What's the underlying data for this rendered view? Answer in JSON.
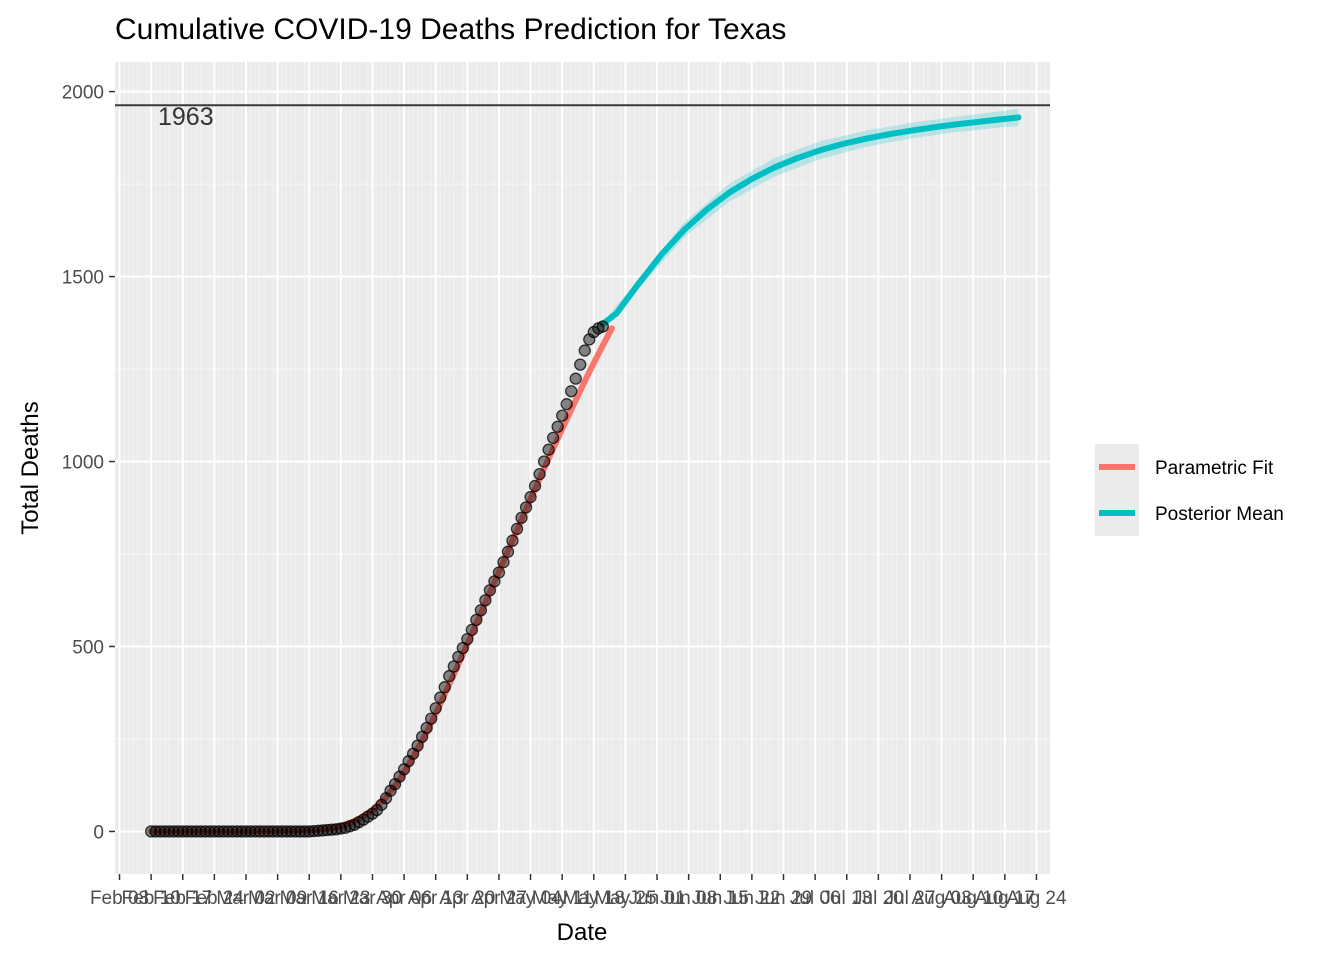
{
  "chart_data": {
    "type": "line",
    "title": "Cumulative COVID-19 Deaths Prediction for Texas",
    "xlabel": "Date",
    "ylabel": "Total Deaths",
    "x_range_days": [
      -6,
      201
    ],
    "ylim": [
      -115,
      2080
    ],
    "y_ticks": [
      0,
      500,
      1000,
      1500,
      2000
    ],
    "x_tick_labels": [
      "Feb 03",
      "Feb 10",
      "Feb 17",
      "Feb 24",
      "Mar 02",
      "Mar 09",
      "Mar 16",
      "Mar 23",
      "Mar 30",
      "Apr 06",
      "Apr 13",
      "Apr 20",
      "Apr 27",
      "May 04",
      "May 11",
      "May 18",
      "May 25",
      "Jun 01",
      "Jun 08",
      "Jun 15",
      "Jun 22",
      "Jun 29",
      "Jul 06",
      "Jul 13",
      "Jul 20",
      "Jul 27",
      "Aug 03",
      "Aug 10",
      "Aug 17",
      "Aug 24"
    ],
    "grid": true,
    "legend_position": "right",
    "reference_line": {
      "y": 1963,
      "label": "1963"
    },
    "observed_points": [
      [
        2,
        0
      ],
      [
        3,
        0
      ],
      [
        4,
        0
      ],
      [
        5,
        0
      ],
      [
        6,
        0
      ],
      [
        7,
        0
      ],
      [
        8,
        0
      ],
      [
        9,
        0
      ],
      [
        10,
        0
      ],
      [
        11,
        0
      ],
      [
        12,
        0
      ],
      [
        13,
        0
      ],
      [
        14,
        0
      ],
      [
        15,
        0
      ],
      [
        16,
        0
      ],
      [
        17,
        0
      ],
      [
        18,
        0
      ],
      [
        19,
        0
      ],
      [
        20,
        0
      ],
      [
        21,
        0
      ],
      [
        22,
        0
      ],
      [
        23,
        0
      ],
      [
        24,
        0
      ],
      [
        25,
        0
      ],
      [
        26,
        0
      ],
      [
        27,
        0
      ],
      [
        28,
        0
      ],
      [
        29,
        0
      ],
      [
        30,
        0
      ],
      [
        31,
        0
      ],
      [
        32,
        0
      ],
      [
        33,
        0
      ],
      [
        34,
        0
      ],
      [
        35,
        0
      ],
      [
        36,
        0
      ],
      [
        37,
        0
      ],
      [
        38,
        1
      ],
      [
        39,
        2
      ],
      [
        40,
        3
      ],
      [
        41,
        4
      ],
      [
        42,
        5
      ],
      [
        43,
        6
      ],
      [
        44,
        8
      ],
      [
        45,
        10
      ],
      [
        46,
        14
      ],
      [
        47,
        18
      ],
      [
        48,
        25
      ],
      [
        49,
        32
      ],
      [
        50,
        40
      ],
      [
        51,
        48
      ],
      [
        52,
        58
      ],
      [
        53,
        72
      ],
      [
        54,
        90
      ],
      [
        55,
        110
      ],
      [
        56,
        128
      ],
      [
        57,
        148
      ],
      [
        58,
        168
      ],
      [
        59,
        190
      ],
      [
        60,
        210
      ],
      [
        61,
        232
      ],
      [
        62,
        256
      ],
      [
        63,
        280
      ],
      [
        64,
        305
      ],
      [
        65,
        333
      ],
      [
        66,
        362
      ],
      [
        67,
        390
      ],
      [
        68,
        420
      ],
      [
        69,
        446
      ],
      [
        70,
        472
      ],
      [
        71,
        496
      ],
      [
        72,
        520
      ],
      [
        73,
        545
      ],
      [
        74,
        572
      ],
      [
        75,
        598
      ],
      [
        76,
        625
      ],
      [
        77,
        652
      ],
      [
        78,
        676
      ],
      [
        79,
        700
      ],
      [
        80,
        728
      ],
      [
        81,
        756
      ],
      [
        82,
        786
      ],
      [
        83,
        818
      ],
      [
        84,
        848
      ],
      [
        85,
        876
      ],
      [
        86,
        904
      ],
      [
        87,
        934
      ],
      [
        88,
        966
      ],
      [
        89,
        1000
      ],
      [
        90,
        1032
      ],
      [
        91,
        1064
      ],
      [
        92,
        1094
      ],
      [
        93,
        1124
      ],
      [
        94,
        1155
      ],
      [
        95,
        1190
      ],
      [
        96,
        1224
      ],
      [
        97,
        1262
      ],
      [
        98,
        1300
      ],
      [
        99,
        1330
      ],
      [
        100,
        1350
      ],
      [
        101,
        1360
      ],
      [
        102,
        1365
      ]
    ],
    "series": [
      {
        "name": "Parametric Fit",
        "color": "#F8766D",
        "points": [
          [
            2,
            0
          ],
          [
            10,
            0
          ],
          [
            20,
            0
          ],
          [
            30,
            1
          ],
          [
            38,
            4
          ],
          [
            42,
            9
          ],
          [
            45,
            18
          ],
          [
            48,
            34
          ],
          [
            51,
            58
          ],
          [
            54,
            92
          ],
          [
            57,
            140
          ],
          [
            60,
            200
          ],
          [
            63,
            268
          ],
          [
            66,
            344
          ],
          [
            69,
            424
          ],
          [
            72,
            506
          ],
          [
            75,
            590
          ],
          [
            78,
            674
          ],
          [
            81,
            758
          ],
          [
            84,
            842
          ],
          [
            87,
            926
          ],
          [
            90,
            1008
          ],
          [
            93,
            1088
          ],
          [
            96,
            1166
          ],
          [
            99,
            1242
          ],
          [
            102,
            1314
          ],
          [
            104,
            1360
          ]
        ]
      },
      {
        "name": "Posterior Mean",
        "color": "#00BFC4",
        "points": [
          [
            102,
            1372
          ],
          [
            105,
            1400
          ],
          [
            110,
            1482
          ],
          [
            115,
            1560
          ],
          [
            120,
            1626
          ],
          [
            125,
            1681
          ],
          [
            130,
            1727
          ],
          [
            135,
            1764
          ],
          [
            140,
            1795
          ],
          [
            145,
            1820
          ],
          [
            150,
            1841
          ],
          [
            155,
            1858
          ],
          [
            160,
            1872
          ],
          [
            165,
            1884
          ],
          [
            170,
            1894
          ],
          [
            175,
            1903
          ],
          [
            180,
            1911
          ],
          [
            185,
            1918
          ],
          [
            190,
            1925
          ],
          [
            194,
            1930
          ]
        ],
        "band": [
          [
            102,
            1368,
            1376
          ],
          [
            110,
            1468,
            1496
          ],
          [
            120,
            1606,
            1646
          ],
          [
            130,
            1703,
            1751
          ],
          [
            140,
            1770,
            1820
          ],
          [
            150,
            1817,
            1865
          ],
          [
            160,
            1850,
            1894
          ],
          [
            170,
            1873,
            1915
          ],
          [
            180,
            1890,
            1932
          ],
          [
            190,
            1903,
            1947
          ],
          [
            194,
            1907,
            1953
          ]
        ]
      }
    ]
  }
}
